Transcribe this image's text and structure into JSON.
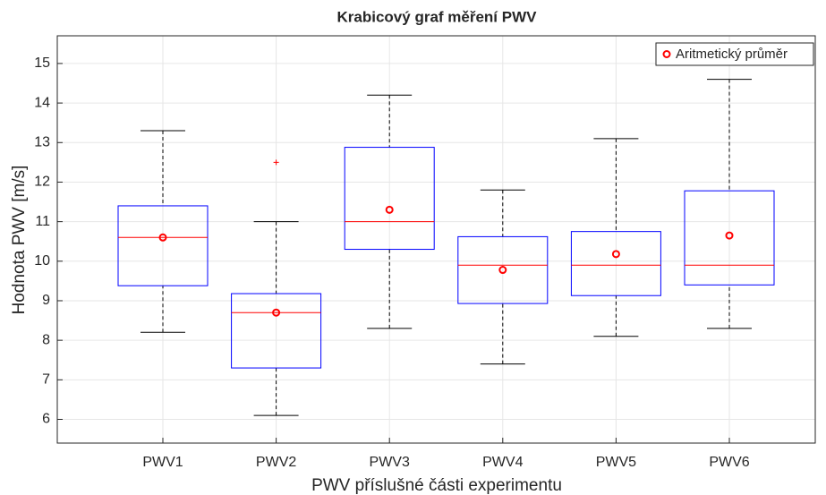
{
  "chart_data": {
    "type": "box",
    "title": "Krabicový graf měření PWV",
    "x_label": "PWV příslušné části experimentu",
    "y_label": "Hodnota PWV [m/s]",
    "categories": [
      "PWV1",
      "PWV2",
      "PWV3",
      "PWV4",
      "PWV5",
      "PWV6"
    ],
    "boxes": [
      {
        "min": 8.2,
        "q1": 9.38,
        "median": 10.6,
        "q3": 11.4,
        "max": 13.3,
        "outliers": []
      },
      {
        "min": 6.1,
        "q1": 7.3,
        "median": 8.7,
        "q3": 9.18,
        "max": 11.0,
        "outliers": [
          12.5
        ]
      },
      {
        "min": 8.3,
        "q1": 10.3,
        "median": 11.0,
        "q3": 12.88,
        "max": 14.2,
        "outliers": []
      },
      {
        "min": 7.4,
        "q1": 8.93,
        "median": 9.9,
        "q3": 10.62,
        "max": 11.8,
        "outliers": []
      },
      {
        "min": 8.1,
        "q1": 9.13,
        "median": 9.9,
        "q3": 10.75,
        "max": 13.1,
        "outliers": []
      },
      {
        "min": 8.3,
        "q1": 9.4,
        "median": 9.9,
        "q3": 11.78,
        "max": 14.6,
        "outliers": []
      }
    ],
    "box_color": "#0000ff",
    "median_color": "#ff0000",
    "whisker_color": "#000000",
    "outlier_color": "#ff0000",
    "series": [
      {
        "name": "Aritmetický průměr",
        "color": "#ff0000",
        "values": [
          10.6,
          8.7,
          11.3,
          9.78,
          10.18,
          10.65
        ]
      }
    ],
    "ylim": [
      5.4,
      15.7
    ],
    "yticks": [
      6,
      7,
      8,
      9,
      10,
      11,
      12,
      13,
      14,
      15
    ],
    "grid": true,
    "legend": "top-right"
  }
}
